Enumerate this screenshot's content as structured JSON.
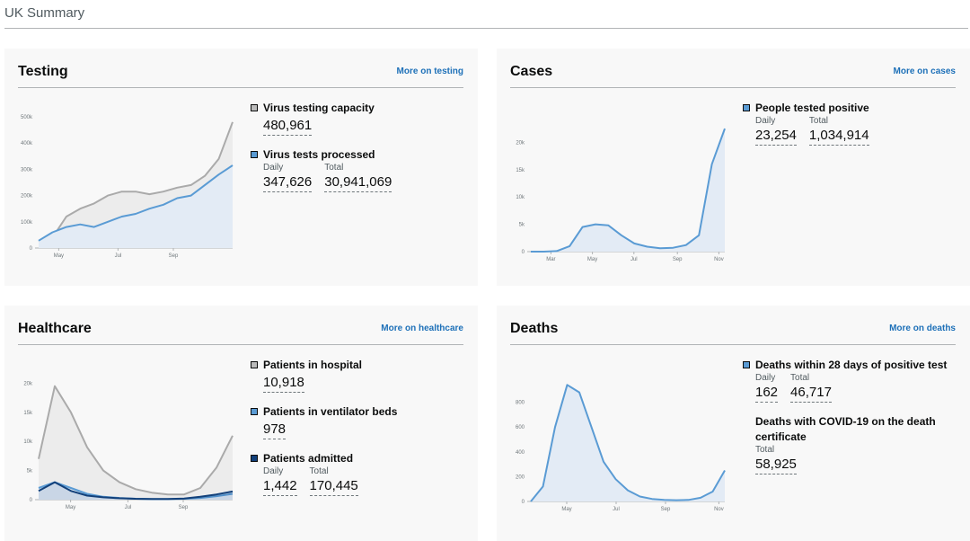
{
  "page": {
    "title": "UK Summary"
  },
  "colors": {
    "grey_series": "#aaaaaa",
    "blue_series": "#5a9bd4",
    "dark_blue_series": "#12407a",
    "area_fill": "#e3ebf5",
    "link": "#1d70b8"
  },
  "testing": {
    "title": "Testing",
    "link": "More on testing",
    "metrics": {
      "capacity": {
        "name": "Virus testing capacity",
        "value": "480,961"
      },
      "processed": {
        "name": "Virus tests processed",
        "daily_label": "Daily",
        "daily": "347,626",
        "total_label": "Total",
        "total": "30,941,069"
      }
    },
    "chart_data": {
      "type": "area",
      "x_ticks": [
        "May",
        "Jul",
        "Sep"
      ],
      "y_ticks": [
        "0",
        "100k",
        "200k",
        "300k",
        "400k",
        "500k"
      ],
      "ylim": [
        0,
        500000
      ],
      "series": [
        {
          "name": "Virus testing capacity",
          "color": "grey",
          "values": [
            25000,
            40000,
            120000,
            150000,
            170000,
            200000,
            215000,
            215000,
            205000,
            215000,
            230000,
            240000,
            275000,
            340000,
            480000
          ]
        },
        {
          "name": "Virus tests processed",
          "color": "blue",
          "values": [
            28000,
            60000,
            80000,
            90000,
            80000,
            100000,
            120000,
            130000,
            150000,
            165000,
            190000,
            200000,
            240000,
            280000,
            315000
          ]
        }
      ]
    }
  },
  "cases": {
    "title": "Cases",
    "link": "More on cases",
    "metrics": {
      "positive": {
        "name": "People tested positive",
        "daily_label": "Daily",
        "daily": "23,254",
        "total_label": "Total",
        "total": "1,034,914"
      }
    },
    "chart_data": {
      "type": "area",
      "x_ticks": [
        "Mar",
        "May",
        "Jul",
        "Sep",
        "Nov"
      ],
      "y_ticks": [
        "0",
        "5k",
        "10k",
        "15k",
        "20k"
      ],
      "ylim": [
        0,
        24000
      ],
      "series": [
        {
          "name": "People tested positive",
          "color": "blue",
          "values": [
            0,
            0,
            100,
            1000,
            4500,
            5000,
            4800,
            3000,
            1500,
            900,
            600,
            700,
            1200,
            3000,
            16000,
            22500
          ]
        }
      ]
    }
  },
  "healthcare": {
    "title": "Healthcare",
    "link": "More on healthcare",
    "metrics": {
      "hospital": {
        "name": "Patients in hospital",
        "value": "10,918"
      },
      "ventilator": {
        "name": "Patients in ventilator beds",
        "value": "978"
      },
      "admitted": {
        "name": "Patients admitted",
        "daily_label": "Daily",
        "daily": "1,442",
        "total_label": "Total",
        "total": "170,445"
      }
    },
    "chart_data": {
      "type": "line",
      "x_ticks": [
        "May",
        "Jul",
        "Sep"
      ],
      "y_ticks": [
        "0",
        "5k",
        "10k",
        "15k",
        "20k"
      ],
      "ylim": [
        0,
        21000
      ],
      "series": [
        {
          "name": "Patients in hospital",
          "color": "grey",
          "values": [
            7000,
            19500,
            15000,
            9000,
            5000,
            3000,
            1800,
            1200,
            900,
            900,
            2000,
            5500,
            11000
          ]
        },
        {
          "name": "Patients in ventilator beds",
          "color": "blue",
          "values": [
            2000,
            3000,
            2000,
            1000,
            500,
            300,
            150,
            100,
            100,
            150,
            300,
            600,
            1000
          ]
        },
        {
          "name": "Patients admitted",
          "color": "dark_blue",
          "values": [
            1500,
            3000,
            1500,
            700,
            400,
            250,
            150,
            120,
            120,
            200,
            500,
            900,
            1400
          ]
        }
      ]
    }
  },
  "deaths": {
    "title": "Deaths",
    "link": "More on deaths",
    "metrics": {
      "within28": {
        "name": "Deaths within 28 days of positive test",
        "daily_label": "Daily",
        "daily": "162",
        "total_label": "Total",
        "total": "46,717"
      },
      "certificate": {
        "name": "Deaths with COVID-19 on the death certificate",
        "total_label": "Total",
        "total": "58,925"
      }
    },
    "chart_data": {
      "type": "area",
      "x_ticks": [
        "May",
        "Jul",
        "Sep",
        "Nov"
      ],
      "y_ticks": [
        "0",
        "200",
        "400",
        "600",
        "800"
      ],
      "ylim": [
        0,
        1000
      ],
      "series": [
        {
          "name": "Deaths within 28 days of positive test",
          "color": "blue",
          "values": [
            0,
            120,
            600,
            940,
            880,
            600,
            320,
            180,
            90,
            40,
            20,
            12,
            10,
            12,
            30,
            80,
            250
          ]
        }
      ]
    }
  }
}
